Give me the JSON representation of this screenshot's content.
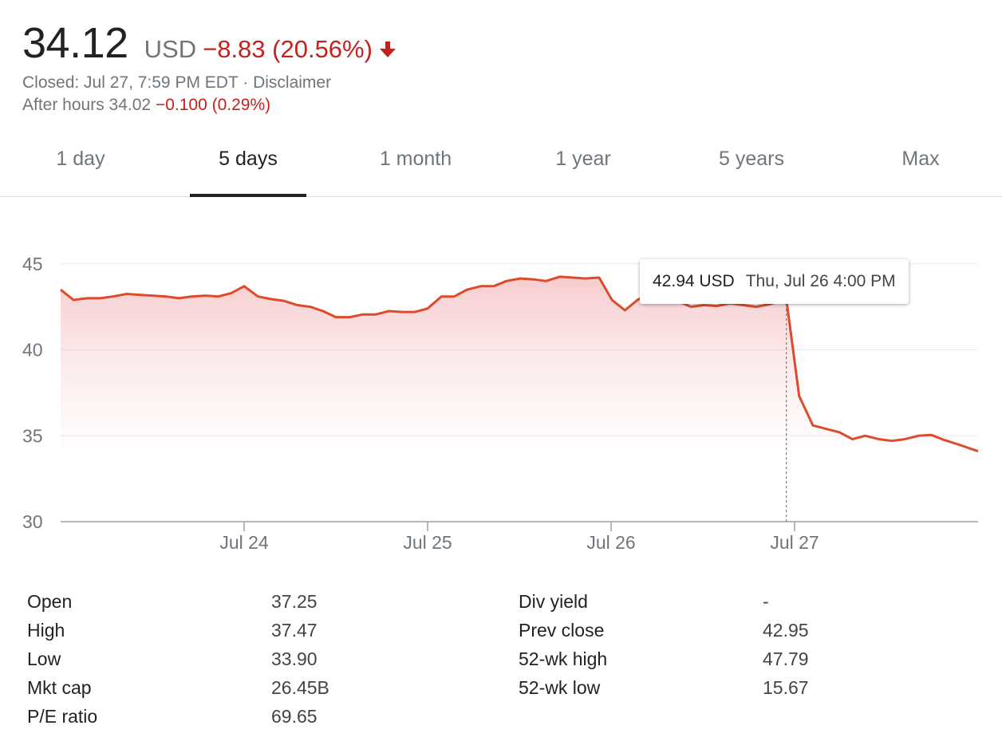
{
  "quote": {
    "price": "34.12",
    "currency": "USD",
    "change": "−8.83 (20.56%)",
    "direction": "down",
    "closed_text": "Closed: Jul 27, 7:59 PM EDT · ",
    "disclaimer": "Disclaimer",
    "after_hours_label": "After hours 34.02 ",
    "after_hours_change": "−0.100 (0.29%)"
  },
  "tabs": [
    {
      "label": "1 day",
      "active": false
    },
    {
      "label": "5 days",
      "active": true
    },
    {
      "label": "1 month",
      "active": false
    },
    {
      "label": "1 year",
      "active": false
    },
    {
      "label": "5 years",
      "active": false
    },
    {
      "label": "Max",
      "active": false
    }
  ],
  "tooltip": {
    "value": "42.94 USD",
    "date": "Thu, Jul 26 4:00 PM"
  },
  "colors": {
    "line": "#dd4b2a",
    "negative": "#c5221f",
    "grid": "#ececec",
    "axis": "#9aa0a6"
  },
  "chart_data": {
    "type": "line",
    "ylim": [
      30,
      45.5
    ],
    "yticks": [
      30,
      35,
      40,
      45
    ],
    "xlim": [
      0,
      1
    ],
    "xticks": [
      {
        "label": "Jul 24",
        "x": 0.2
      },
      {
        "label": "Jul 25",
        "x": 0.4
      },
      {
        "label": "Jul 26",
        "x": 0.6
      },
      {
        "label": "Jul 27",
        "x": 0.8
      }
    ],
    "series": [
      {
        "values": [
          [
            0.0,
            43.5
          ],
          [
            0.014,
            42.9
          ],
          [
            0.029,
            43.0
          ],
          [
            0.043,
            43.0
          ],
          [
            0.057,
            43.1
          ],
          [
            0.072,
            43.25
          ],
          [
            0.086,
            43.2
          ],
          [
            0.1,
            43.15
          ],
          [
            0.115,
            43.1
          ],
          [
            0.129,
            43.0
          ],
          [
            0.143,
            43.1
          ],
          [
            0.158,
            43.15
          ],
          [
            0.172,
            43.1
          ],
          [
            0.186,
            43.3
          ],
          [
            0.2,
            43.7
          ],
          [
            0.215,
            43.1
          ],
          [
            0.229,
            42.95
          ],
          [
            0.243,
            42.85
          ],
          [
            0.258,
            42.6
          ],
          [
            0.272,
            42.5
          ],
          [
            0.286,
            42.25
          ],
          [
            0.3,
            41.9
          ],
          [
            0.315,
            41.9
          ],
          [
            0.329,
            42.05
          ],
          [
            0.343,
            42.05
          ],
          [
            0.358,
            42.25
          ],
          [
            0.372,
            42.2
          ],
          [
            0.386,
            42.2
          ],
          [
            0.4,
            42.4
          ],
          [
            0.415,
            43.1
          ],
          [
            0.429,
            43.1
          ],
          [
            0.443,
            43.5
          ],
          [
            0.458,
            43.7
          ],
          [
            0.472,
            43.7
          ],
          [
            0.486,
            44.0
          ],
          [
            0.501,
            44.15
          ],
          [
            0.515,
            44.1
          ],
          [
            0.529,
            44.0
          ],
          [
            0.544,
            44.25
          ],
          [
            0.558,
            44.2
          ],
          [
            0.572,
            44.15
          ],
          [
            0.587,
            44.2
          ],
          [
            0.601,
            42.9
          ],
          [
            0.615,
            42.3
          ],
          [
            0.63,
            42.95
          ],
          [
            0.644,
            42.9
          ],
          [
            0.658,
            42.95
          ],
          [
            0.672,
            42.85
          ],
          [
            0.687,
            42.5
          ],
          [
            0.701,
            42.6
          ],
          [
            0.715,
            42.55
          ],
          [
            0.73,
            42.7
          ],
          [
            0.744,
            42.6
          ],
          [
            0.758,
            42.5
          ],
          [
            0.773,
            42.65
          ],
          [
            0.791,
            42.94
          ],
          [
            0.805,
            37.3
          ],
          [
            0.82,
            35.6
          ],
          [
            0.834,
            35.4
          ],
          [
            0.849,
            35.2
          ],
          [
            0.863,
            34.8
          ],
          [
            0.877,
            35.0
          ],
          [
            0.892,
            34.8
          ],
          [
            0.906,
            34.7
          ],
          [
            0.92,
            34.8
          ],
          [
            0.935,
            35.0
          ],
          [
            0.949,
            35.05
          ],
          [
            0.963,
            34.75
          ],
          [
            0.978,
            34.5
          ],
          [
            1.0,
            34.1
          ]
        ]
      }
    ],
    "highlight": {
      "x": 0.791,
      "value": 42.94
    },
    "grid": true,
    "legend": "none"
  },
  "stats": {
    "left": [
      {
        "label": "Open",
        "value": "37.25"
      },
      {
        "label": "High",
        "value": "37.47"
      },
      {
        "label": "Low",
        "value": "33.90"
      },
      {
        "label": "Mkt cap",
        "value": "26.45B"
      },
      {
        "label": "P/E ratio",
        "value": "69.65"
      }
    ],
    "right": [
      {
        "label": "Div yield",
        "value": "-"
      },
      {
        "label": "Prev close",
        "value": "42.95"
      },
      {
        "label": "52-wk high",
        "value": "47.79"
      },
      {
        "label": "52-wk low",
        "value": "15.67"
      }
    ]
  }
}
